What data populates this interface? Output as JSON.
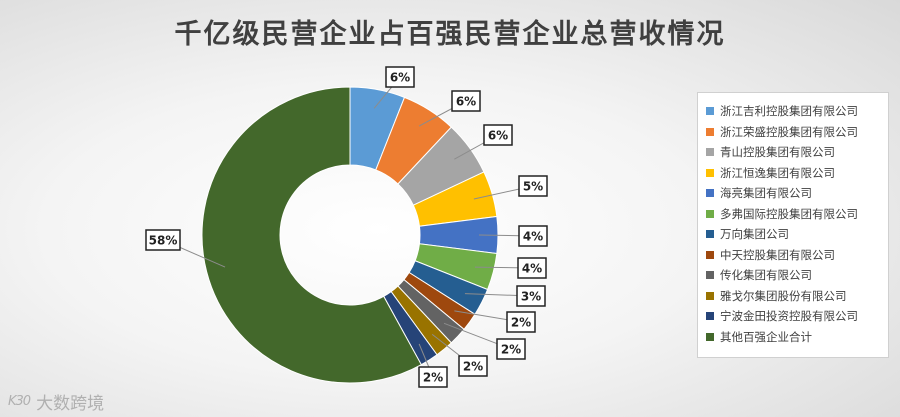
{
  "chart_data": {
    "type": "pie",
    "title": "千亿级民营企业占百强民营企业总营收情况",
    "legend_position": "right",
    "donut": true,
    "slices": [
      {
        "name": "浙江吉利控股集团有限公司",
        "value": 6,
        "label": "6%",
        "color": "#5b9bd5"
      },
      {
        "name": "浙江荣盛控股集团有限公司",
        "value": 6,
        "label": "6%",
        "color": "#ed7d31"
      },
      {
        "name": "青山控股集团有限公司",
        "value": 6,
        "label": "6%",
        "color": "#a5a5a5"
      },
      {
        "name": "浙江恒逸集团有限公司",
        "value": 5,
        "label": "5%",
        "color": "#ffc000"
      },
      {
        "name": "海亮集团有限公司",
        "value": 4,
        "label": "4%",
        "color": "#4472c4"
      },
      {
        "name": "多弗国际控股集团有限公司",
        "value": 4,
        "label": "4%",
        "color": "#70ad47"
      },
      {
        "name": "万向集团公司",
        "value": 3,
        "label": "3%",
        "color": "#255e91"
      },
      {
        "name": "中天控股集团有限公司",
        "value": 2,
        "label": "2%",
        "color": "#9e480e"
      },
      {
        "name": "传化集团有限公司",
        "value": 2,
        "label": "2%",
        "color": "#636363"
      },
      {
        "name": "雅戈尔集团股份有限公司",
        "value": 2,
        "label": "2%",
        "color": "#997300"
      },
      {
        "name": "宁波金田投资控股有限公司",
        "value": 2,
        "label": "2%",
        "color": "#264478"
      },
      {
        "name": "其他百强企业合计",
        "value": 58,
        "label": "58%",
        "color": "#43682b"
      }
    ]
  },
  "watermark": {
    "logo": "K30",
    "text": "大数跨境"
  }
}
